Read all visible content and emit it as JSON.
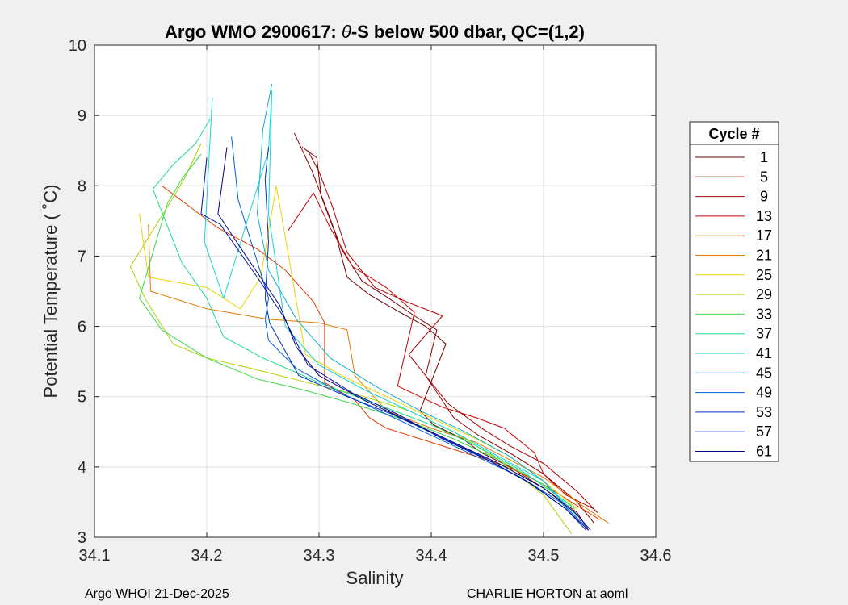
{
  "chart_data": {
    "type": "line",
    "title_prefix": "Argo WMO 2900617: ",
    "title_theta": "θ",
    "title_suffix": "-S below 500 dbar,  QC=(1,2)",
    "xlabel": "Salinity",
    "ylabel": "Potential Temperature ( ˚C)",
    "xlim": [
      34.1,
      34.6
    ],
    "ylim": [
      3,
      10
    ],
    "xticks": [
      34.1,
      34.2,
      34.3,
      34.4,
      34.5,
      34.6
    ],
    "xtick_labels": [
      "34.1",
      "34.2",
      "34.3",
      "34.4",
      "34.5",
      "34.6"
    ],
    "yticks": [
      3,
      4,
      5,
      6,
      7,
      8,
      9,
      10
    ],
    "ytick_labels": [
      "3",
      "4",
      "5",
      "6",
      "7",
      "8",
      "9",
      "10"
    ],
    "grid": true,
    "legend_title": "Cycle #",
    "legend_position": "right-outside",
    "series": [
      {
        "name": "1",
        "color": "#6a0000",
        "x": [
          34.285,
          34.298,
          34.302,
          34.315,
          34.325,
          34.345,
          34.372,
          34.395,
          34.413,
          34.39,
          34.402,
          34.428,
          34.445,
          34.47,
          34.5,
          34.53,
          34.54
        ],
        "y": [
          8.55,
          8.4,
          7.85,
          7.3,
          6.7,
          6.45,
          6.2,
          6.0,
          5.75,
          4.8,
          4.6,
          4.4,
          4.2,
          4.0,
          3.7,
          3.35,
          3.1
        ]
      },
      {
        "name": "5",
        "color": "#8a0000",
        "x": [
          34.278,
          34.294,
          34.306,
          34.32,
          34.338,
          34.362,
          34.385,
          34.405,
          34.395,
          34.42,
          34.442,
          34.47,
          34.5,
          34.53,
          34.545
        ],
        "y": [
          8.75,
          8.2,
          7.7,
          7.1,
          6.65,
          6.4,
          6.15,
          5.95,
          5.3,
          4.7,
          4.45,
          4.2,
          3.9,
          3.5,
          3.2
        ]
      },
      {
        "name": "9",
        "color": "#a80000",
        "x": [
          34.29,
          34.3,
          34.312,
          34.325,
          34.35,
          34.378,
          34.41,
          34.38,
          34.415,
          34.445,
          34.47,
          34.5,
          34.53,
          34.548
        ],
        "y": [
          8.5,
          8.2,
          7.7,
          7.05,
          6.55,
          6.35,
          6.15,
          5.6,
          4.9,
          4.55,
          4.3,
          4.05,
          3.65,
          3.35
        ]
      },
      {
        "name": "13",
        "color": "#c80000",
        "x": [
          34.272,
          34.295,
          34.31,
          34.33,
          34.36,
          34.385,
          34.37,
          34.41,
          34.44,
          34.465,
          34.492,
          34.5,
          34.52,
          34.545
        ],
        "y": [
          7.35,
          7.9,
          7.4,
          6.85,
          6.55,
          6.2,
          5.15,
          4.85,
          4.7,
          4.55,
          4.2,
          3.9,
          3.6,
          3.4
        ]
      },
      {
        "name": "17",
        "color": "#e03c00",
        "x": [
          34.16,
          34.185,
          34.21,
          34.245,
          34.27,
          34.295,
          34.305,
          34.305,
          34.332,
          34.345,
          34.36,
          34.39,
          34.42,
          34.45,
          34.475,
          34.5,
          34.525,
          34.55
        ],
        "y": [
          8.0,
          7.7,
          7.4,
          7.1,
          6.8,
          6.35,
          6.05,
          5.2,
          4.95,
          4.7,
          4.55,
          4.4,
          4.25,
          4.1,
          3.95,
          3.75,
          3.5,
          3.25
        ]
      },
      {
        "name": "21",
        "color": "#e07a00",
        "x": [
          34.148,
          34.15,
          34.2,
          34.255,
          34.3,
          34.325,
          34.332,
          34.36,
          34.4,
          34.44,
          34.47,
          34.5,
          34.53,
          34.558
        ],
        "y": [
          7.45,
          6.5,
          6.25,
          6.1,
          6.05,
          5.95,
          5.3,
          4.8,
          4.55,
          4.35,
          4.1,
          3.85,
          3.5,
          3.2
        ]
      },
      {
        "name": "25",
        "color": "#e8d400",
        "x": [
          34.14,
          34.148,
          34.2,
          34.23,
          34.248,
          34.262,
          34.288,
          34.32,
          34.36,
          34.4,
          34.44,
          34.47,
          34.5,
          34.53
        ],
        "y": [
          7.6,
          6.7,
          6.55,
          6.25,
          6.7,
          8.0,
          5.6,
          5.3,
          5.0,
          4.7,
          4.4,
          4.15,
          3.8,
          3.4
        ]
      },
      {
        "name": "29",
        "color": "#a8d400",
        "x": [
          34.195,
          34.18,
          34.165,
          34.132,
          34.145,
          34.17,
          34.2,
          34.24,
          34.29,
          34.34,
          34.38,
          34.42,
          34.46,
          34.5,
          34.525
        ],
        "y": [
          8.6,
          8.1,
          7.7,
          6.85,
          6.4,
          5.75,
          5.55,
          5.4,
          5.2,
          5.0,
          4.8,
          4.5,
          4.1,
          3.6,
          3.05
        ]
      },
      {
        "name": "33",
        "color": "#3cd84a",
        "x": [
          34.195,
          34.178,
          34.165,
          34.14,
          34.16,
          34.2,
          34.245,
          34.285,
          34.33,
          34.38,
          34.42,
          34.46,
          34.5,
          34.528
        ],
        "y": [
          8.45,
          8.1,
          7.75,
          6.4,
          5.95,
          5.55,
          5.25,
          5.1,
          4.9,
          4.65,
          4.4,
          4.1,
          3.75,
          3.4
        ]
      },
      {
        "name": "37",
        "color": "#1ddc8a",
        "x": [
          34.203,
          34.19,
          34.17,
          34.152,
          34.178,
          34.2,
          34.215,
          34.25,
          34.3,
          34.35,
          34.4,
          34.44,
          34.48,
          34.525
        ],
        "y": [
          8.95,
          8.6,
          8.3,
          7.95,
          6.9,
          6.4,
          5.85,
          5.55,
          5.2,
          4.9,
          4.6,
          4.3,
          3.95,
          3.45
        ]
      },
      {
        "name": "41",
        "color": "#19d4d0",
        "x": [
          34.205,
          34.198,
          34.215,
          34.255,
          34.258,
          34.255,
          34.27,
          34.3,
          34.34,
          34.38,
          34.42,
          34.46,
          34.5,
          34.53
        ],
        "y": [
          9.25,
          7.2,
          6.4,
          8.5,
          9.35,
          7.6,
          6.0,
          5.45,
          5.1,
          4.8,
          4.5,
          4.15,
          3.8,
          3.3
        ]
      },
      {
        "name": "45",
        "color": "#10b0d0",
        "x": [
          34.258,
          34.25,
          34.248,
          34.245,
          34.255,
          34.28,
          34.31,
          34.35,
          34.39,
          34.43,
          34.47,
          34.5,
          34.525
        ],
        "y": [
          9.45,
          8.8,
          8.3,
          7.6,
          6.8,
          6.1,
          5.55,
          5.15,
          4.8,
          4.5,
          4.15,
          3.8,
          3.35
        ]
      },
      {
        "name": "49",
        "color": "#0060d8",
        "x": [
          34.222,
          34.228,
          34.255,
          34.252,
          34.255,
          34.28,
          34.32,
          34.36,
          34.4,
          34.44,
          34.48,
          34.515,
          34.538
        ],
        "y": [
          8.7,
          7.8,
          6.4,
          6.1,
          5.8,
          5.4,
          5.05,
          4.75,
          4.45,
          4.15,
          3.85,
          3.5,
          3.15
        ]
      },
      {
        "name": "53",
        "color": "#0030c0",
        "x": [
          34.255,
          34.252,
          34.255,
          34.252,
          34.256,
          34.282,
          34.325,
          34.365,
          34.405,
          34.445,
          34.485,
          34.52,
          34.538
        ],
        "y": [
          8.55,
          8.1,
          7.2,
          6.4,
          6.05,
          5.3,
          5.0,
          4.75,
          4.45,
          4.15,
          3.8,
          3.4,
          3.1
        ]
      },
      {
        "name": "57",
        "color": "#0010a8",
        "x": [
          34.2,
          34.195,
          34.212,
          34.245,
          34.268,
          34.29,
          34.33,
          34.37,
          34.41,
          34.45,
          34.49,
          34.52,
          34.54
        ],
        "y": [
          8.4,
          7.6,
          7.45,
          6.7,
          6.15,
          5.45,
          5.05,
          4.75,
          4.4,
          4.1,
          3.75,
          3.4,
          3.1
        ]
      },
      {
        "name": "61",
        "color": "#000080",
        "x": [
          34.218,
          34.21,
          34.235,
          34.265,
          34.28,
          34.3,
          34.34,
          34.38,
          34.42,
          34.46,
          34.5,
          34.528,
          34.542
        ],
        "y": [
          8.55,
          7.6,
          7.0,
          6.3,
          5.7,
          5.3,
          4.95,
          4.65,
          4.35,
          4.05,
          3.7,
          3.35,
          3.1
        ]
      }
    ]
  },
  "footer": {
    "left": "Argo WHOI 21-Dec-2025",
    "right": "CHARLIE HORTON at aoml"
  }
}
